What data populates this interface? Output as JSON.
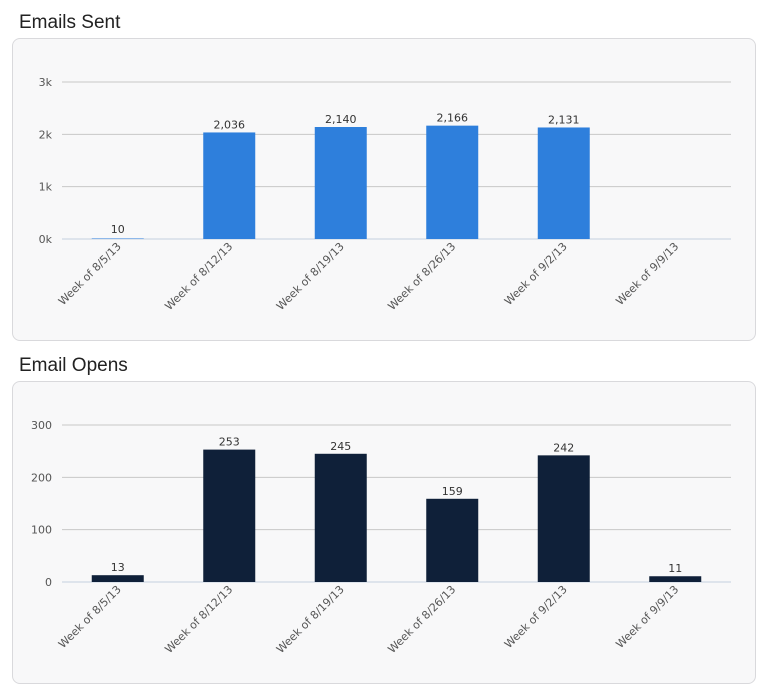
{
  "sections": [
    {
      "title": "Emails Sent",
      "color": "#2e7fdc"
    },
    {
      "title": "Email Opens",
      "color": "#0f2039"
    }
  ],
  "chart_data": [
    {
      "type": "bar",
      "title": "Emails Sent",
      "categories": [
        "Week of 8/5/13",
        "Week of 8/12/13",
        "Week of 8/19/13",
        "Week of 8/26/13",
        "Week of 9/2/13",
        "Week of 9/9/13"
      ],
      "values": [
        10,
        2036,
        2140,
        2166,
        2131,
        null
      ],
      "data_labels": [
        "10",
        "2,036",
        "2,140",
        "2,166",
        "2,131",
        ""
      ],
      "ylim": [
        0,
        3000
      ],
      "yticks": [
        0,
        1000,
        2000,
        3000
      ],
      "ytick_labels": [
        "0k",
        "1k",
        "2k",
        "3k"
      ],
      "xlabel": "",
      "ylabel": "",
      "grid": true,
      "color": "#2e7fdc"
    },
    {
      "type": "bar",
      "title": "Email Opens",
      "categories": [
        "Week of 8/5/13",
        "Week of 8/12/13",
        "Week of 8/19/13",
        "Week of 8/26/13",
        "Week of 9/2/13",
        "Week of 9/9/13"
      ],
      "values": [
        13,
        253,
        245,
        159,
        242,
        11
      ],
      "data_labels": [
        "13",
        "253",
        "245",
        "159",
        "242",
        "11"
      ],
      "ylim": [
        0,
        300
      ],
      "yticks": [
        0,
        100,
        200,
        300
      ],
      "ytick_labels": [
        "0",
        "100",
        "200",
        "300"
      ],
      "xlabel": "",
      "ylabel": "",
      "grid": true,
      "color": "#0f2039"
    }
  ]
}
